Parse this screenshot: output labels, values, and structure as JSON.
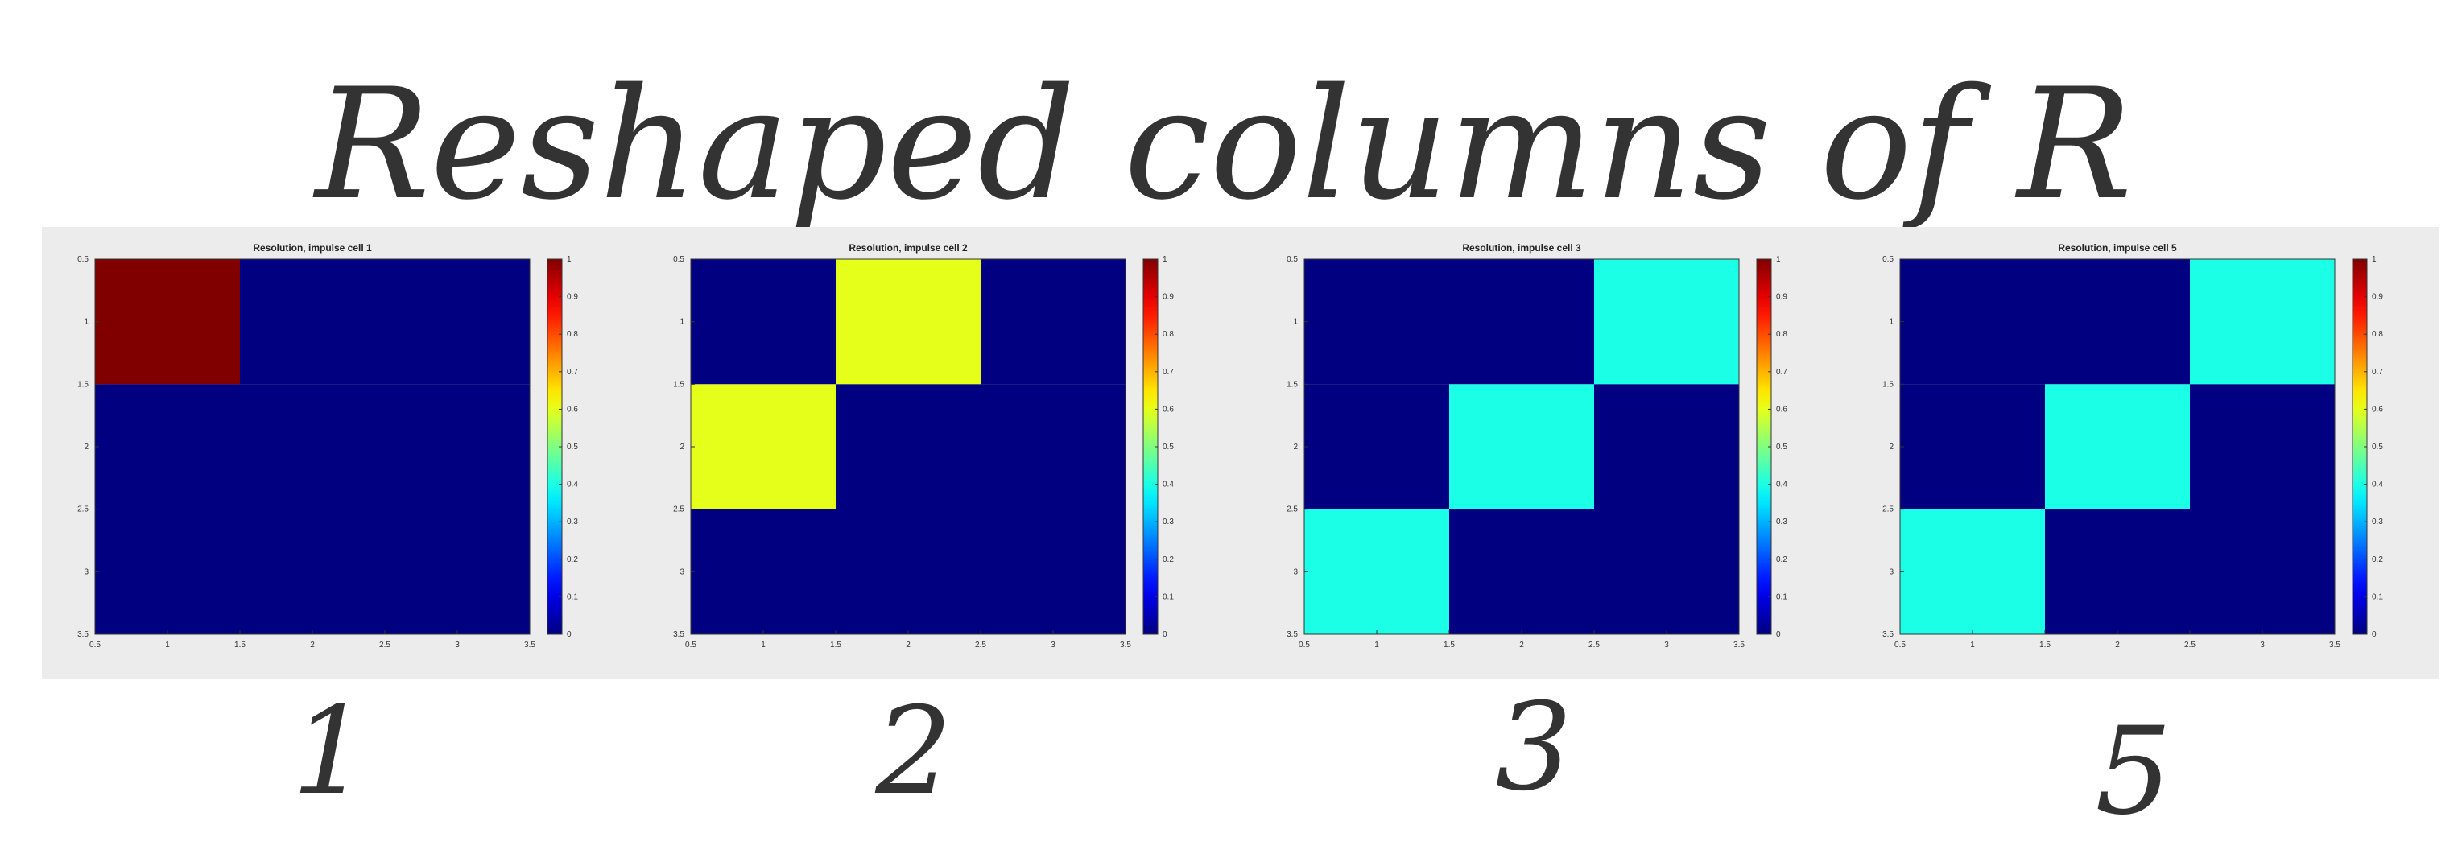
{
  "annotations": {
    "title": "Reshaped columns of R",
    "labels": [
      "1",
      "2",
      "3",
      "5"
    ]
  },
  "chart_data": [
    {
      "type": "heatmap",
      "title": "Resolution, impulse cell 1",
      "rows": 3,
      "cols": 3,
      "matrix": [
        [
          1,
          0,
          0
        ],
        [
          0,
          0,
          0
        ],
        [
          0,
          0,
          0
        ]
      ],
      "xlim": [
        0.5,
        3.5
      ],
      "ylim": [
        0.5,
        3.5
      ],
      "xticks": [
        "0.5",
        "1",
        "1.5",
        "2",
        "2.5",
        "3",
        "3.5"
      ],
      "yticks": [
        "0.5",
        "1",
        "1.5",
        "2",
        "2.5",
        "3",
        "3.5"
      ],
      "colorbar": {
        "min": 0,
        "max": 1,
        "ticks": [
          "0",
          "0.1",
          "0.2",
          "0.3",
          "0.4",
          "0.5",
          "0.6",
          "0.7",
          "0.8",
          "0.9",
          "1"
        ],
        "colormap": "jet"
      },
      "grid": false
    },
    {
      "type": "heatmap",
      "title": "Resolution, impulse cell 2",
      "rows": 3,
      "cols": 3,
      "matrix": [
        [
          0,
          0.6,
          0
        ],
        [
          0.6,
          0,
          0
        ],
        [
          0,
          0,
          0
        ]
      ],
      "xlim": [
        0.5,
        3.5
      ],
      "ylim": [
        0.5,
        3.5
      ],
      "xticks": [
        "0.5",
        "1",
        "1.5",
        "2",
        "2.5",
        "3",
        "3.5"
      ],
      "yticks": [
        "0.5",
        "1",
        "1.5",
        "2",
        "2.5",
        "3",
        "3.5"
      ],
      "colorbar": {
        "min": 0,
        "max": 1,
        "ticks": [
          "0",
          "0.1",
          "0.2",
          "0.3",
          "0.4",
          "0.5",
          "0.6",
          "0.7",
          "0.8",
          "0.9",
          "1"
        ],
        "colormap": "jet"
      },
      "grid": false
    },
    {
      "type": "heatmap",
      "title": "Resolution, impulse cell 3",
      "rows": 3,
      "cols": 3,
      "matrix": [
        [
          0,
          0,
          0.4
        ],
        [
          0,
          0.4,
          0
        ],
        [
          0.4,
          0,
          0
        ]
      ],
      "xlim": [
        0.5,
        3.5
      ],
      "ylim": [
        0.5,
        3.5
      ],
      "xticks": [
        "0.5",
        "1",
        "1.5",
        "2",
        "2.5",
        "3",
        "3.5"
      ],
      "yticks": [
        "0.5",
        "1",
        "1.5",
        "2",
        "2.5",
        "3",
        "3.5"
      ],
      "colorbar": {
        "min": 0,
        "max": 1,
        "ticks": [
          "0",
          "0.1",
          "0.2",
          "0.3",
          "0.4",
          "0.5",
          "0.6",
          "0.7",
          "0.8",
          "0.9",
          "1"
        ],
        "colormap": "jet"
      },
      "grid": false
    },
    {
      "type": "heatmap",
      "title": "Resolution, impulse cell 5",
      "rows": 3,
      "cols": 3,
      "matrix": [
        [
          0,
          0,
          0.4
        ],
        [
          0,
          0.4,
          0
        ],
        [
          0.4,
          0,
          0
        ]
      ],
      "xlim": [
        0.5,
        3.5
      ],
      "ylim": [
        0.5,
        3.5
      ],
      "xticks": [
        "0.5",
        "1",
        "1.5",
        "2",
        "2.5",
        "3",
        "3.5"
      ],
      "yticks": [
        "0.5",
        "1",
        "1.5",
        "2",
        "2.5",
        "3",
        "3.5"
      ],
      "colorbar": {
        "min": 0,
        "max": 1,
        "ticks": [
          "0",
          "0.1",
          "0.2",
          "0.3",
          "0.4",
          "0.5",
          "0.6",
          "0.7",
          "0.8",
          "0.9",
          "1"
        ],
        "colormap": "jet"
      },
      "grid": false
    }
  ]
}
